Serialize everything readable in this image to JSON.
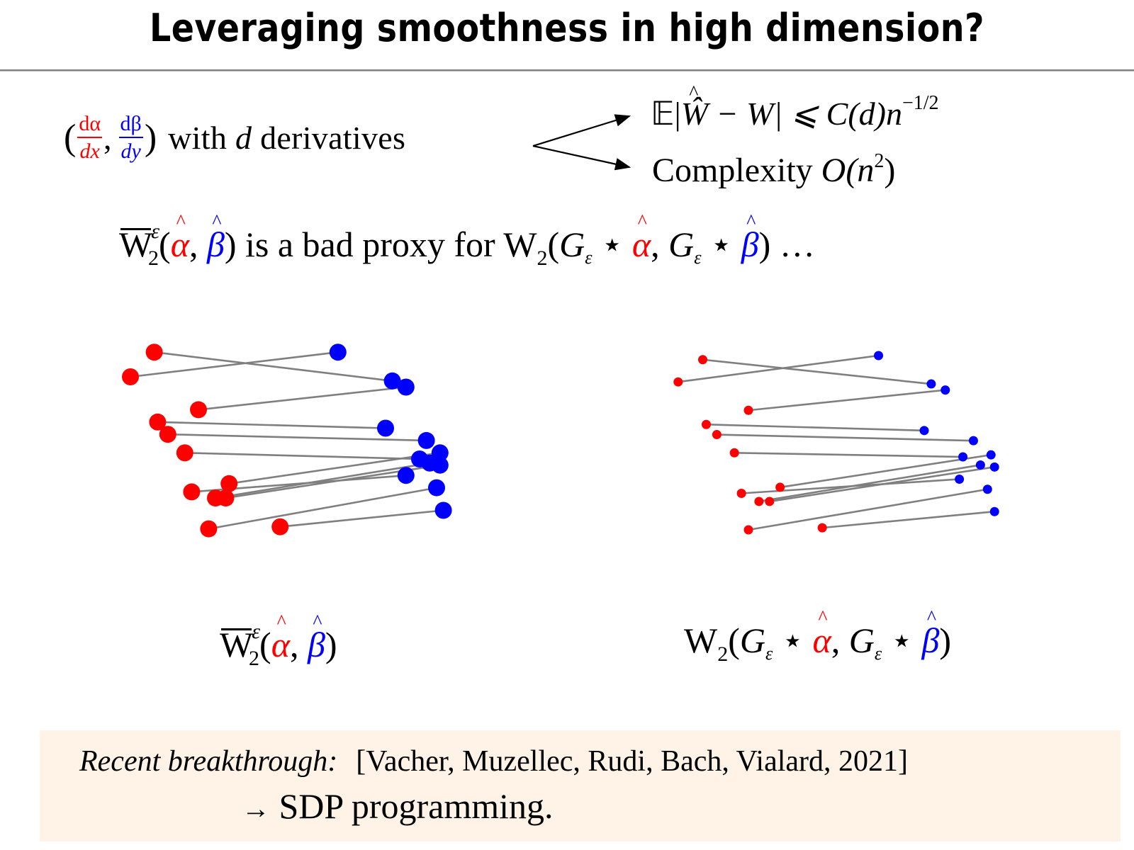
{
  "slide": {
    "title": "Leveraging smoothness in high dimension?"
  },
  "row1": {
    "open_paren": "(",
    "frac_alpha": {
      "num": "dα",
      "den": "dx"
    },
    "comma": ",",
    "frac_beta": {
      "num": "dβ",
      "den": "dy"
    },
    "close_paren": ")",
    "text_pre": "with",
    "text_var": "d",
    "text_post": "derivatives",
    "branch_top": {
      "E": "𝔼|",
      "What": "Ŵ",
      "minus_W": " − W| ⩽ C(d)n",
      "exp": "−1/2"
    },
    "branch_bottom": {
      "label": "Complexity ",
      "O": "O(n",
      "exp": "2",
      "close": ")"
    }
  },
  "row2": {
    "W": "W",
    "eps": "ε",
    "sub": "2",
    "open": "(",
    "alpha": "α",
    "comma": ", ",
    "beta": "β",
    "close": ")",
    "middle": " is a bad proxy for ",
    "W2": "W",
    "W2sub": "2",
    "open2": "(",
    "G": "G",
    "Gsub": "ε",
    "star": " ⋆ ",
    "alpha2": "α",
    "comma2": ", ",
    "G2": "G",
    "G2sub": "ε",
    "star2": " ⋆ ",
    "beta2": "β",
    "close2": ")",
    "ellipsis": " …"
  },
  "captions": {
    "left": {
      "W": "W",
      "eps": "ε",
      "sub": "2",
      "open": "(",
      "alpha": "α",
      "comma": ", ",
      "beta": "β",
      "close": ")"
    },
    "right": {
      "W": "W",
      "sub": "2",
      "open": "(",
      "G": "G",
      "Gsub": "ε",
      "star": " ⋆ ",
      "alpha": "α",
      "comma": ", ",
      "G2": "G",
      "G2sub": "ε",
      "star2": " ⋆ ",
      "beta": "β",
      "close": ")"
    }
  },
  "colors": {
    "alpha": "#ff0000",
    "beta": "#0000ff",
    "link": "#7f7f7f",
    "note_bg": "#fef3e6"
  },
  "chart_data": [
    {
      "type": "scatter",
      "title": "",
      "caption": "entropic-regularized W2 bar (ε) of empirical measures",
      "xlabel": "",
      "ylabel": "",
      "xlim": [
        0,
        100
      ],
      "ylim": [
        0,
        100
      ],
      "grid": false,
      "marker_size": "large",
      "series": [
        {
          "name": "alpha_hat",
          "color": "#ff0000",
          "points": [
            [
              12,
              8
            ],
            [
              5,
              20
            ],
            [
              25,
              36
            ],
            [
              13,
              42
            ],
            [
              16,
              48
            ],
            [
              21,
              57
            ],
            [
              34,
              72
            ],
            [
              23,
              76
            ],
            [
              30,
              79
            ],
            [
              33,
              79
            ],
            [
              28,
              94
            ],
            [
              49,
              93
            ]
          ]
        },
        {
          "name": "beta_hat",
          "color": "#0000ff",
          "points": [
            [
              66,
              8
            ],
            [
              82,
              22
            ],
            [
              86,
              25
            ],
            [
              80,
              45
            ],
            [
              92,
              51
            ],
            [
              90,
              60
            ],
            [
              96,
              57
            ],
            [
              93,
              62
            ],
            [
              96,
              63
            ],
            [
              86,
              68
            ],
            [
              95,
              74
            ],
            [
              97,
              85
            ]
          ]
        }
      ],
      "matching": [
        [
          0,
          1
        ],
        [
          1,
          0
        ],
        [
          2,
          2
        ],
        [
          3,
          3
        ],
        [
          4,
          4
        ],
        [
          5,
          5
        ],
        [
          6,
          6
        ],
        [
          7,
          9
        ],
        [
          8,
          7
        ],
        [
          9,
          8
        ],
        [
          10,
          10
        ],
        [
          11,
          11
        ]
      ]
    },
    {
      "type": "scatter",
      "title": "",
      "caption": "W2 of Gaussian-smoothed measures",
      "xlabel": "",
      "ylabel": "",
      "xlim": [
        0,
        100
      ],
      "ylim": [
        0,
        100
      ],
      "grid": false,
      "marker_size": "small",
      "series": [
        {
          "name": "alpha_hat",
          "color": "#ff0000",
          "points": [
            [
              12,
              9
            ],
            [
              5,
              20
            ],
            [
              25,
              34
            ],
            [
              13,
              41
            ],
            [
              16,
              46
            ],
            [
              21,
              55
            ],
            [
              34,
              72
            ],
            [
              23,
              75
            ],
            [
              28,
              79
            ],
            [
              31,
              79
            ],
            [
              25,
              93
            ],
            [
              46,
              92
            ]
          ]
        },
        {
          "name": "beta_hat",
          "color": "#0000ff",
          "points": [
            [
              62,
              7
            ],
            [
              77,
              21
            ],
            [
              81,
              24
            ],
            [
              75,
              44
            ],
            [
              89,
              49
            ],
            [
              86,
              57
            ],
            [
              94,
              56
            ],
            [
              91,
              61
            ],
            [
              95,
              62
            ],
            [
              85,
              68
            ],
            [
              93,
              73
            ],
            [
              95,
              84
            ]
          ]
        }
      ],
      "matching": [
        [
          0,
          1
        ],
        [
          1,
          0
        ],
        [
          2,
          2
        ],
        [
          3,
          3
        ],
        [
          4,
          4
        ],
        [
          5,
          5
        ],
        [
          6,
          6
        ],
        [
          7,
          9
        ],
        [
          8,
          7
        ],
        [
          9,
          8
        ],
        [
          10,
          10
        ],
        [
          11,
          11
        ]
      ]
    }
  ],
  "note": {
    "label": "Recent breakthrough:",
    "citation": "[Vacher, Muzellec, Rudi, Bach, Vialard, 2021]",
    "arrow": "→",
    "conclusion": " SDP programming."
  }
}
